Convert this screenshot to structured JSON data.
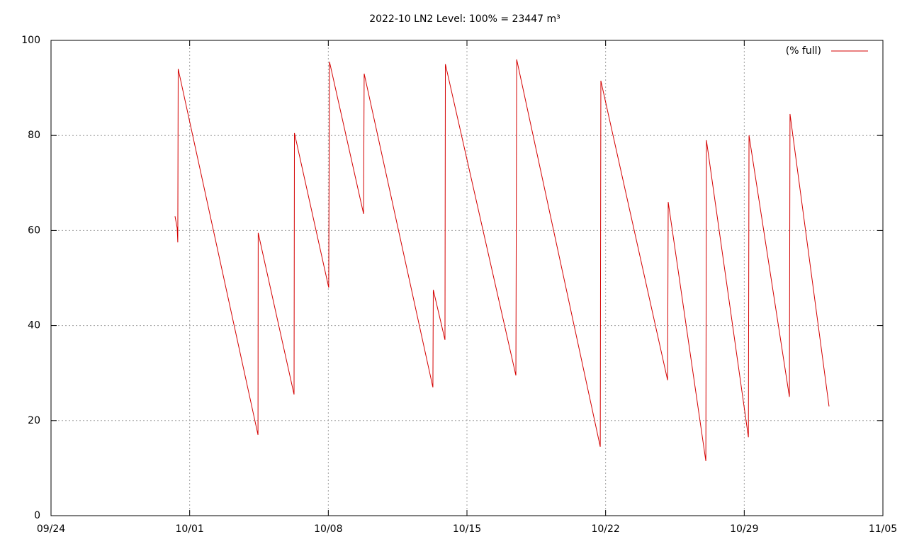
{
  "chart_data": {
    "type": "line",
    "title": "2022-10 LN2 Level: 100% = 23447 m³",
    "x": [
      6.26,
      6.37,
      6.4,
      6.42,
      10.45,
      10.46,
      12.27,
      12.29,
      14.02,
      14.06,
      15.78,
      15.81,
      19.28,
      19.3,
      19.89,
      19.91,
      23.47,
      23.51,
      27.73,
      27.76,
      31.13,
      31.16,
      33.06,
      33.09,
      35.21,
      35.24,
      37.28,
      37.31,
      39.28
    ],
    "series": [
      {
        "name": "(% full)",
        "color": "#d40000",
        "values": [
          63,
          60.5,
          57.5,
          94,
          17,
          59.5,
          25.5,
          80.5,
          48,
          95.5,
          63.5,
          93,
          27,
          47.5,
          37,
          95,
          29.5,
          96,
          14.5,
          91.5,
          28.5,
          66,
          11.5,
          79,
          16.5,
          80,
          25,
          84.5,
          23
        ]
      }
    ],
    "xlim": [
      0,
      42
    ],
    "xticks": [
      {
        "value": 0,
        "label": "09/24"
      },
      {
        "value": 7,
        "label": "10/01"
      },
      {
        "value": 14,
        "label": "10/08"
      },
      {
        "value": 21,
        "label": "10/15"
      },
      {
        "value": 28,
        "label": "10/22"
      },
      {
        "value": 35,
        "label": "10/29"
      },
      {
        "value": 42,
        "label": "11/05"
      }
    ],
    "ylim": [
      0,
      100
    ],
    "yticks": [
      0,
      20,
      40,
      60,
      80,
      100
    ],
    "grid": true,
    "legend": "top-right"
  }
}
